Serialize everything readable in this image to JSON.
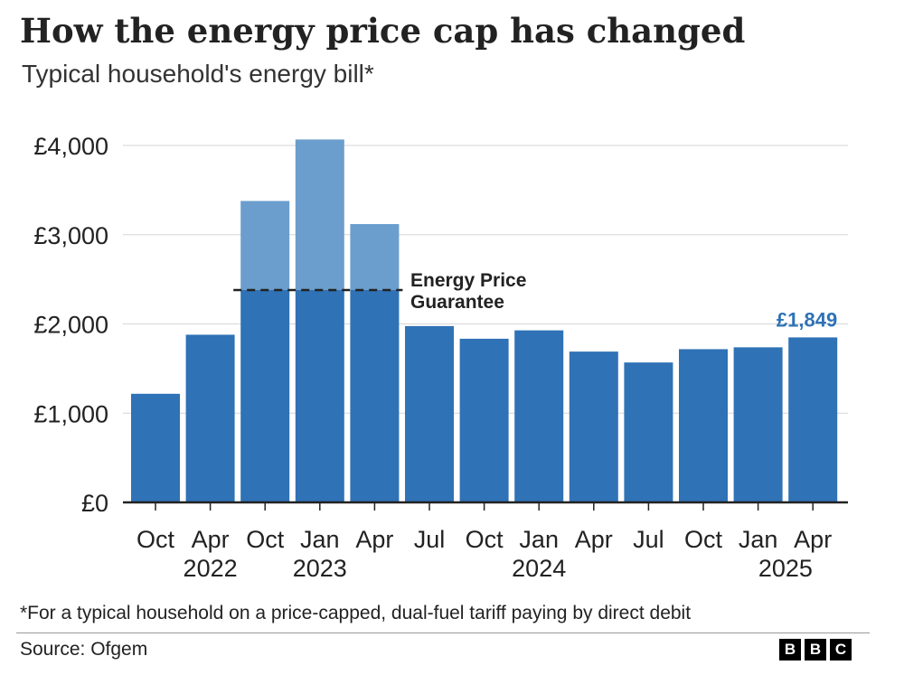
{
  "header": {
    "title": "How the energy price cap has changed",
    "subtitle": "Typical household's energy bill*"
  },
  "footer": {
    "footnote": "*For a typical household on a price-capped, dual-fuel tariff paying by direct debit",
    "source": "Source: Ofgem",
    "logo_letters": [
      "B",
      "B",
      "C"
    ]
  },
  "colors": {
    "bar": "#2f72b6",
    "bar_above_guarantee": "#6b9ecd",
    "highlight_label": "#2f72b6",
    "grid": "#d6d6d6",
    "axis": "#222222"
  },
  "chart_data": {
    "type": "bar",
    "title": "How the energy price cap has changed",
    "subtitle": "Typical household's energy bill*",
    "categories": [
      "Oct",
      "Apr",
      "Oct",
      "Jan",
      "Apr",
      "Jul",
      "Oct",
      "Jan",
      "Apr",
      "Jul",
      "Oct",
      "Jan",
      "Apr"
    ],
    "year_labels": [
      {
        "label": "2022",
        "category_index": 1
      },
      {
        "label": "2023",
        "category_index": 3
      },
      {
        "label": "2024",
        "category_index": 7
      },
      {
        "label": "2025",
        "category_index": 11.5
      }
    ],
    "values": [
      1217,
      1879,
      3378,
      4067,
      3119,
      1976,
      1834,
      1928,
      1690,
      1568,
      1717,
      1738,
      1849
    ],
    "y_ticks": [
      0,
      1000,
      2000,
      3000,
      4000
    ],
    "y_tick_labels": [
      "£0",
      "£1,000",
      "£2,000",
      "£3,000",
      "£4,000"
    ],
    "ylim": [
      0,
      4200
    ],
    "xlabel": "",
    "ylabel": "",
    "grid": true,
    "energy_price_guarantee": {
      "value": 2380,
      "label_line1": "Energy Price",
      "label_line2": "Guarantee",
      "applies_to_indices": [
        2,
        3,
        4
      ]
    },
    "highlight": {
      "index": 12,
      "label": "£1,849"
    }
  }
}
